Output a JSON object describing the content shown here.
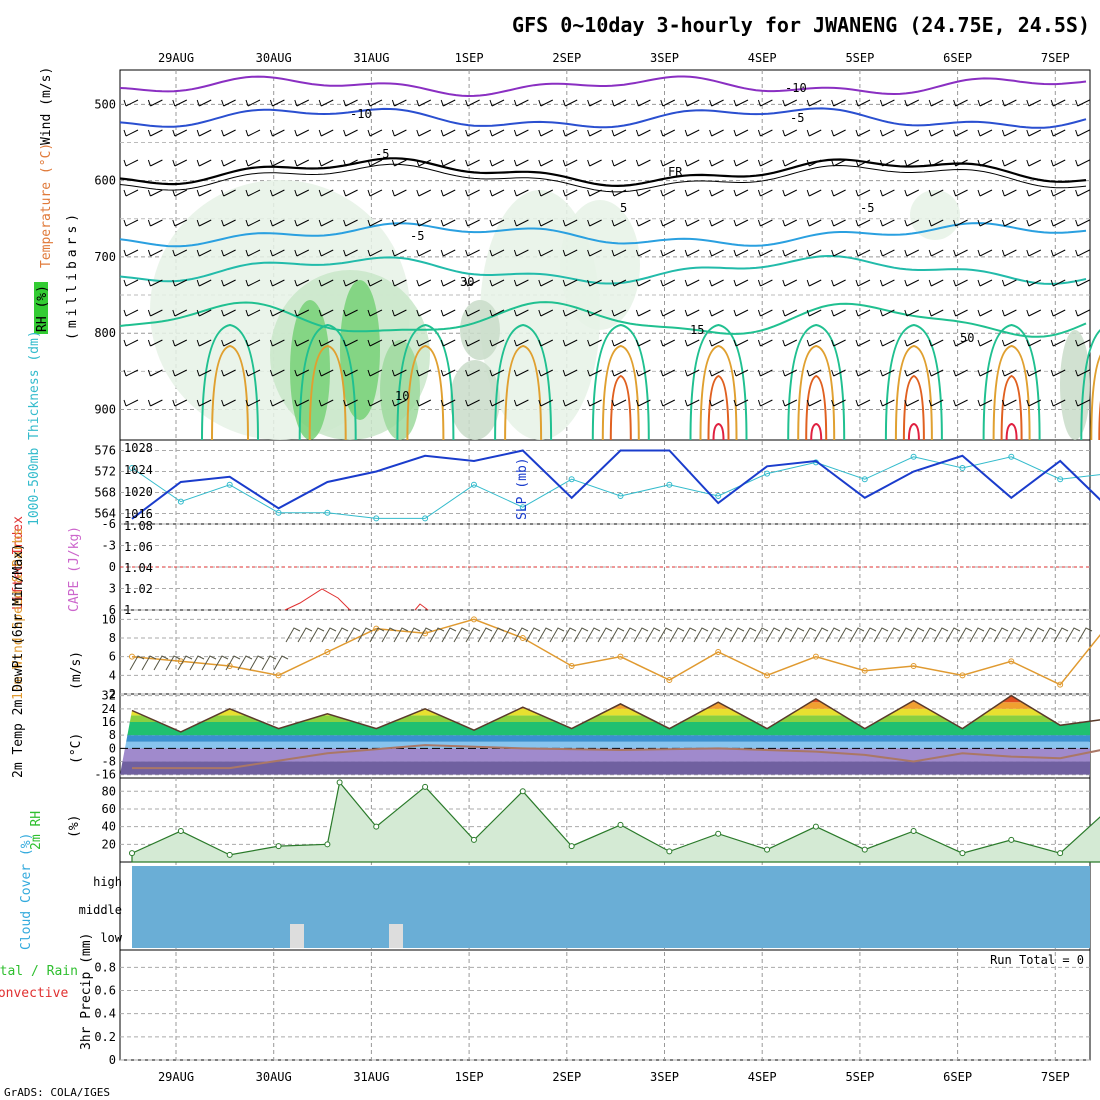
{
  "title": "GFS 0~10day 3-hourly for JWANENG (24.75E, 24.5S)",
  "credit": "GrADS: COLA/IGES",
  "colors": {
    "temperature": "#e07a3a",
    "wind": "#000000",
    "rh": "#2fbf2f",
    "slp": "#1a3ccc",
    "thickness": "#33bbcc",
    "lifted_index": "#e03030",
    "cape": "#cc66cc",
    "wind10m": "#e09a30",
    "cloud": "#6aaed6",
    "dewpt": "#aa7766"
  },
  "dates": [
    "29AUG",
    "30AUG",
    "31AUG",
    "1SEP",
    "2SEP",
    "3SEP",
    "4SEP",
    "5SEP",
    "6SEP",
    "7SEP"
  ],
  "panels": {
    "upper_air": {
      "ylabel_parts": [
        "RH (%)",
        "Temperature (°C)",
        "Wind (m/s)"
      ],
      "axis_unit": "(millibars)",
      "yticks": [
        "500",
        "600",
        "700",
        "800",
        "900"
      ],
      "contour_labels": [
        "-10",
        "-10",
        "-5",
        "-5",
        "-5",
        "-5",
        "FR",
        "5",
        "15",
        "30",
        "50",
        "10"
      ]
    },
    "pressure": {
      "label_thickness": "1000-500mb Thickness (dm)",
      "label_slp": "SLP (mb)",
      "left_ticks": [
        "576",
        "572",
        "568",
        "564"
      ],
      "right_ticks": [
        "1028",
        "1024",
        "1020",
        "1016"
      ]
    },
    "stability": {
      "label_li": "Lifted Index",
      "label_cape": "CAPE (J/kg)",
      "left_ticks": [
        "-6",
        "-3",
        "0",
        "3",
        "6"
      ],
      "right_ticks": [
        "1.08",
        "1.06",
        "1.04",
        "1.02",
        "1"
      ]
    },
    "wind10m": {
      "label": "10m Wind Speed & Barbs",
      "unit": "(m/s)",
      "yticks": [
        "10",
        "8",
        "6",
        "4",
        "2"
      ]
    },
    "temp2m": {
      "label": "2m Temp 2m DewPt (6hr Min/Max)",
      "unit": "(°C)",
      "yticks": [
        "32",
        "24",
        "16",
        "8",
        "0",
        "-8",
        "-16"
      ]
    },
    "rh2m": {
      "label": "2m RH",
      "unit": "(%)",
      "yticks": [
        "80",
        "60",
        "40",
        "20"
      ]
    },
    "cloud": {
      "label": "Cloud Cover (%)",
      "levels": [
        "high",
        "middle",
        "low"
      ]
    },
    "precip": {
      "label_total": "Total / Rain",
      "label_conv": "Convective",
      "ylabel": "3hr Precip (mm)",
      "run_total": "Run Total = 0",
      "yticks": [
        "0.8",
        "0.6",
        "0.4",
        "0.2",
        "0"
      ]
    }
  },
  "chart_data": [
    {
      "type": "line",
      "title": "SLP (mb)",
      "ylim": [
        1014,
        1030
      ],
      "x_hours": [
        0,
        12,
        24,
        36,
        48,
        60,
        72,
        84,
        96,
        108,
        120,
        132,
        144,
        156,
        168,
        180,
        192,
        204,
        216,
        228,
        240
      ],
      "values": [
        1015,
        1022,
        1023,
        1017,
        1022,
        1024,
        1027,
        1026,
        1028,
        1019,
        1028,
        1028,
        1018,
        1025,
        1026,
        1019,
        1024,
        1027,
        1019,
        1026,
        1017
      ]
    },
    {
      "type": "line",
      "title": "1000-500mb Thickness (dm)",
      "ylim": [
        563,
        578
      ],
      "x_hours": [
        0,
        12,
        24,
        36,
        48,
        60,
        72,
        84,
        96,
        108,
        120,
        132,
        144,
        156,
        168,
        180,
        192,
        204,
        216,
        228,
        240
      ],
      "values": [
        573,
        567,
        570,
        565,
        565,
        564,
        564,
        570,
        566,
        571,
        568,
        570,
        568,
        572,
        574,
        571,
        575,
        573,
        575,
        571,
        572
      ]
    },
    {
      "type": "line",
      "title": "10m Wind Speed (m/s)",
      "ylim": [
        2,
        11
      ],
      "x_hours": [
        0,
        12,
        24,
        36,
        48,
        60,
        72,
        84,
        96,
        108,
        120,
        132,
        144,
        156,
        168,
        180,
        192,
        204,
        216,
        228,
        240
      ],
      "values": [
        6,
        5.5,
        5,
        4,
        6.5,
        9,
        8.5,
        10,
        8,
        5,
        6,
        3.5,
        6.5,
        4,
        6,
        4.5,
        5,
        4,
        5.5,
        3,
        9.5
      ]
    },
    {
      "type": "area",
      "title": "2m Temp max/min (°C)",
      "ylim": [
        -18,
        33
      ],
      "x_hours": [
        0,
        12,
        24,
        36,
        48,
        60,
        72,
        84,
        96,
        108,
        120,
        132,
        144,
        156,
        168,
        180,
        192,
        204,
        216,
        228,
        240
      ],
      "values": [
        23,
        10,
        24,
        12,
        21,
        12,
        24,
        11,
        25,
        12,
        27,
        12,
        28,
        12,
        30,
        12,
        29,
        12,
        32,
        14,
        18
      ]
    },
    {
      "type": "line",
      "title": "2m DewPt (°C)",
      "ylim": [
        -18,
        33
      ],
      "x_hours": [
        0,
        24,
        48,
        60,
        72,
        96,
        120,
        144,
        168,
        180,
        192,
        204,
        216,
        228,
        240
      ],
      "values": [
        -12,
        -12,
        -3,
        -0.5,
        2,
        0,
        -1,
        0,
        -2,
        -4,
        -8,
        -3,
        -5,
        -6,
        0
      ]
    },
    {
      "type": "area",
      "title": "2m RH (%)",
      "ylim": [
        0,
        95
      ],
      "x_hours": [
        0,
        12,
        24,
        36,
        48,
        51,
        60,
        72,
        84,
        96,
        108,
        120,
        132,
        144,
        156,
        168,
        180,
        192,
        204,
        216,
        228,
        240
      ],
      "values": [
        10,
        35,
        8,
        18,
        20,
        90,
        40,
        85,
        25,
        80,
        18,
        42,
        12,
        32,
        14,
        40,
        14,
        35,
        10,
        25,
        10,
        60
      ]
    },
    {
      "type": "bar",
      "title": "3hr Precip (mm)",
      "ylim": [
        0,
        1
      ],
      "x_hours": [
        0,
        240
      ],
      "values": [
        0,
        0
      ]
    }
  ]
}
